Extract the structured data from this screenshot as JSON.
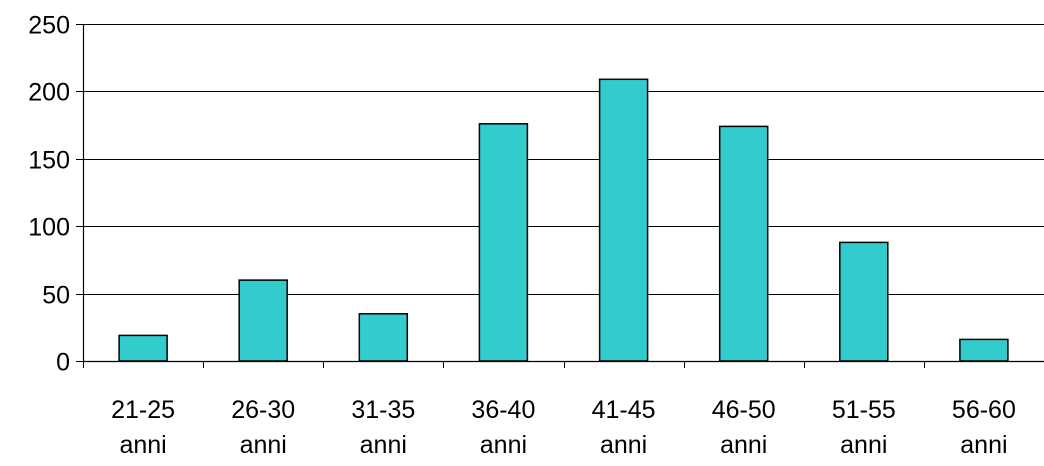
{
  "chart_data": {
    "type": "bar",
    "categories": [
      [
        "21-25",
        "anni"
      ],
      [
        "26-30",
        "anni"
      ],
      [
        "31-35",
        "anni"
      ],
      [
        "36-40",
        "anni"
      ],
      [
        "41-45",
        "anni"
      ],
      [
        "46-50",
        "anni"
      ],
      [
        "51-55",
        "anni"
      ],
      [
        "56-60",
        "anni"
      ]
    ],
    "values": [
      19,
      60,
      35,
      176,
      209,
      174,
      88,
      16
    ],
    "ylim": [
      0,
      250
    ],
    "yticks": [
      0,
      50,
      100,
      150,
      200,
      250
    ],
    "grid": true,
    "legend": "none",
    "colors": {
      "bar_fill": "#33CCCC",
      "bar_stroke": "#000000",
      "gridline": "#000000",
      "axis": "#000000"
    }
  }
}
